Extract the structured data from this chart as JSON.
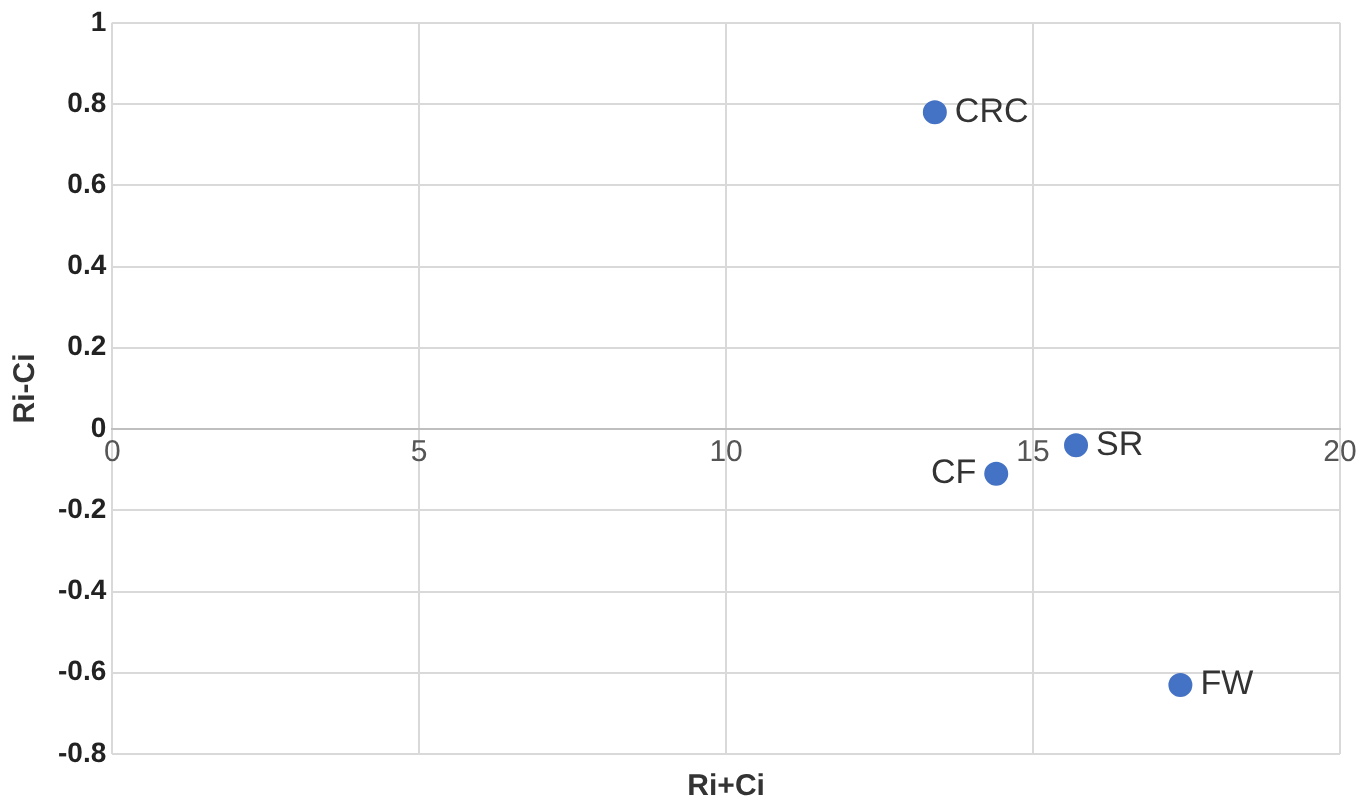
{
  "chart_data": {
    "type": "scatter",
    "xlabel": "Ri+Ci",
    "ylabel": "Ri-Ci",
    "series": [
      {
        "name": "CRC",
        "color": "#4472c4",
        "x": [
          13.4
        ],
        "values": [
          0.78
        ]
      },
      {
        "name": "CF",
        "color": "#4472c4",
        "x": [
          14.4
        ],
        "values": [
          -0.11
        ]
      },
      {
        "name": "SR",
        "color": "#4472c4",
        "x": [
          15.7
        ],
        "values": [
          -0.04
        ]
      },
      {
        "name": "FW",
        "color": "#4472c4",
        "x": [
          17.4
        ],
        "values": [
          -0.63
        ]
      }
    ],
    "xlim": [
      0,
      20
    ],
    "xticks": [
      0,
      5,
      10,
      15,
      20
    ],
    "ylim": [
      -0.8,
      1
    ],
    "yticks": [
      -0.8,
      -0.6,
      -0.4,
      -0.2,
      0,
      0.2,
      0.4,
      0.6,
      0.8,
      1
    ],
    "grid": true,
    "legend": false,
    "marker": "circle"
  }
}
